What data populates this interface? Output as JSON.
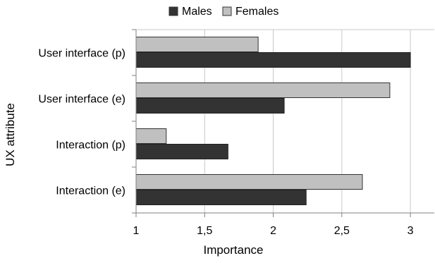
{
  "chart_data": {
    "type": "bar",
    "orientation": "horizontal",
    "title": "",
    "xlabel": "Importance",
    "ylabel": "UX attribute",
    "xlim": [
      1,
      3.2
    ],
    "x_ticks": [
      1,
      1.5,
      2,
      2.5,
      3
    ],
    "x_tick_labels": [
      "1",
      "1,5",
      "2",
      "2,5",
      "3"
    ],
    "categories": [
      "User interface (p)",
      "User interface (e)",
      "Interaction (p)",
      "Interaction (e)"
    ],
    "series": [
      {
        "name": "Males",
        "color": "#333333",
        "values": [
          3.0,
          2.08,
          1.67,
          2.24
        ]
      },
      {
        "name": "Females",
        "color": "#c0c0c0",
        "values": [
          1.89,
          2.85,
          1.22,
          2.65
        ]
      }
    ],
    "legend_position": "top",
    "grid": {
      "x": true,
      "y": false
    }
  }
}
